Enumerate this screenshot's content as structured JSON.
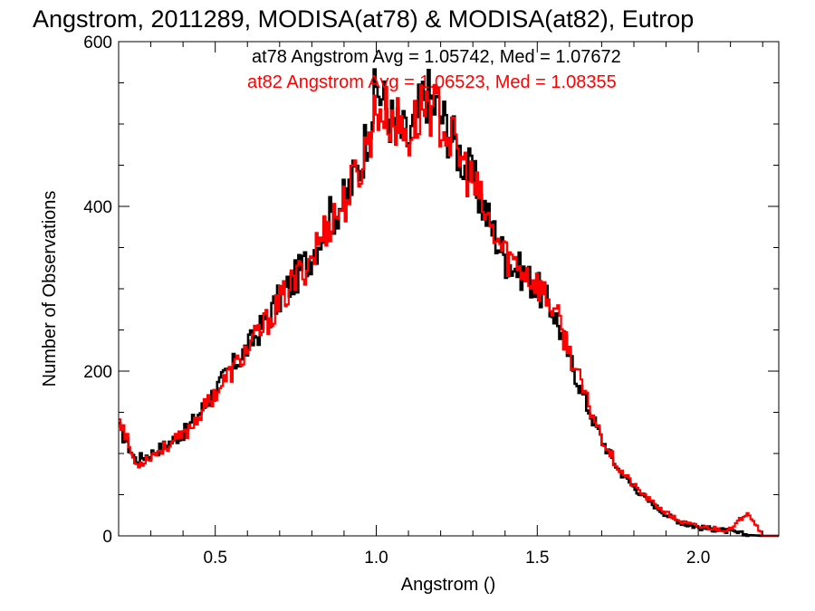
{
  "chart_data": {
    "type": "line",
    "title": "Angstrom, 2011289, MODISA(at78) & MODISA(at82), Eutrop",
    "xlabel": "Angstrom ()",
    "ylabel": "Number of Observations",
    "xlim": [
      0.2,
      2.25
    ],
    "ylim": [
      0,
      600
    ],
    "x_ticks": [
      0.5,
      1.0,
      1.5,
      2.0
    ],
    "x_tick_labels": [
      "0.5",
      "1.0",
      "1.5",
      "2.0"
    ],
    "y_ticks": [
      0,
      200,
      400,
      600
    ],
    "y_tick_labels": [
      "0",
      "200",
      "400",
      "600"
    ],
    "grid": false,
    "annotations": [
      {
        "text": "at78 Angstrom Avg = 1.05742, Med = 1.07672",
        "color": "#000000"
      },
      {
        "text": "at82 Angstrom Avg = 1.06523, Med = 1.08355",
        "color": "#ff0000"
      }
    ],
    "series": [
      {
        "color": "#000000",
        "x": [
          0.2,
          0.25,
          0.3,
          0.35,
          0.4,
          0.45,
          0.5,
          0.55,
          0.6,
          0.65,
          0.7,
          0.75,
          0.8,
          0.85,
          0.9,
          0.95,
          1.0,
          1.05,
          1.1,
          1.15,
          1.2,
          1.25,
          1.3,
          1.35,
          1.4,
          1.45,
          1.5,
          1.55,
          1.6,
          1.65,
          1.7,
          1.75,
          1.8,
          1.85,
          1.9,
          1.95,
          2.0,
          2.05,
          2.1,
          2.15,
          2.2,
          2.25
        ],
        "y": [
          130,
          92,
          100,
          112,
          125,
          150,
          178,
          205,
          230,
          258,
          290,
          315,
          345,
          385,
          408,
          455,
          545,
          500,
          480,
          540,
          510,
          470,
          430,
          380,
          335,
          320,
          300,
          270,
          215,
          160,
          115,
          80,
          58,
          40,
          25,
          15,
          10,
          8,
          5,
          1,
          0,
          0
        ]
      },
      {
        "color": "#ff0000",
        "x": [
          0.2,
          0.25,
          0.3,
          0.35,
          0.4,
          0.45,
          0.5,
          0.55,
          0.6,
          0.65,
          0.7,
          0.75,
          0.8,
          0.85,
          0.9,
          0.95,
          1.0,
          1.05,
          1.1,
          1.15,
          1.2,
          1.25,
          1.3,
          1.35,
          1.4,
          1.45,
          1.5,
          1.55,
          1.6,
          1.65,
          1.7,
          1.75,
          1.8,
          1.85,
          1.9,
          1.95,
          2.0,
          2.05,
          2.1,
          2.15,
          2.2,
          2.25
        ],
        "y": [
          145,
          85,
          98,
          110,
          122,
          148,
          175,
          200,
          228,
          255,
          285,
          312,
          342,
          380,
          405,
          450,
          520,
          505,
          485,
          530,
          505,
          465,
          425,
          375,
          340,
          325,
          305,
          275,
          220,
          165,
          118,
          82,
          60,
          42,
          27,
          16,
          11,
          9,
          7,
          30,
          0,
          0
        ]
      }
    ]
  }
}
